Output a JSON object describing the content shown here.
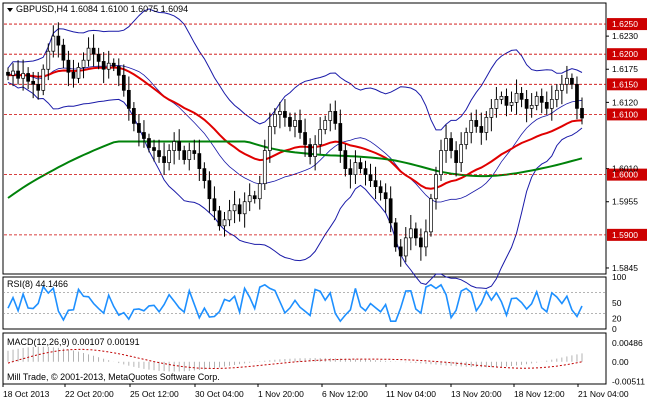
{
  "chart_data": [
    {
      "type": "candlestick",
      "title": "GBPUSD,H4  1.6084 1.6100 1.6075 1.6094",
      "symbol": "GBPUSD",
      "timeframe": "H4",
      "ohlc_readout": [
        1.6084,
        1.61,
        1.6075,
        1.6094
      ],
      "ylim": [
        1.5835,
        1.6285
      ],
      "y_ticks": [
        "1.6230",
        "1.6175",
        "1.6120",
        "1.6010",
        "1.5955",
        "1.5845"
      ],
      "level_labels": [
        "1.6250",
        "1.6200",
        "1.6150",
        "1.6100",
        "1.6000",
        "1.5900"
      ],
      "levels": [
        1.625,
        1.62,
        1.615,
        1.61,
        1.6,
        1.59
      ],
      "current_price": 1.61,
      "x_ticks": [
        "18 Oct 2013",
        "22 Oct 20:00",
        "25 Oct 12:00",
        "30 Oct 04:00",
        "1 Nov 20:00",
        "6 Nov 12:00",
        "11 Nov 04:00",
        "13 Nov 20:00",
        "18 Nov 12:00",
        "21 Nov 04:00"
      ],
      "close": [
        1.6165,
        1.6172,
        1.616,
        1.6168,
        1.6155,
        1.615,
        1.614,
        1.6175,
        1.6205,
        1.623,
        1.6215,
        1.619,
        1.617,
        1.616,
        1.6178,
        1.619,
        1.621,
        1.62,
        1.6188,
        1.6175,
        1.6185,
        1.618,
        1.6165,
        1.614,
        1.611,
        1.6085,
        1.607,
        1.606,
        1.6045,
        1.604,
        1.603,
        1.602,
        1.604,
        1.6055,
        1.604,
        1.6025,
        1.604,
        1.6035,
        1.601,
        1.599,
        1.596,
        1.594,
        1.5915,
        1.5925,
        1.594,
        1.595,
        1.5935,
        1.5955,
        1.5965,
        1.596,
        1.5985,
        1.604,
        1.608,
        1.61,
        1.6105,
        1.6095,
        1.608,
        1.609,
        1.607,
        1.605,
        1.603,
        1.605,
        1.6075,
        1.609,
        1.6105,
        1.6085,
        1.604,
        1.601,
        1.6,
        1.602,
        1.601,
        1.6,
        1.599,
        1.598,
        1.597,
        1.596,
        1.592,
        1.588,
        1.5865,
        1.5895,
        1.591,
        1.5895,
        1.588,
        1.5905,
        1.596,
        1.6,
        1.604,
        1.606,
        1.604,
        1.602,
        1.605,
        1.607,
        1.609,
        1.608,
        1.607,
        1.6095,
        1.611,
        1.6125,
        1.613,
        1.6115,
        1.612,
        1.6135,
        1.6125,
        1.611,
        1.6115,
        1.613,
        1.612,
        1.611,
        1.6125,
        1.614,
        1.615,
        1.616,
        1.615,
        1.611,
        1.6094
      ],
      "indicators": {
        "bollinger_bands": true,
        "moving_averages": [
          {
            "color": "#e00000"
          },
          {
            "color": "#00820a"
          }
        ]
      }
    },
    {
      "type": "line",
      "title": "RSI(8) 44.1466",
      "name": "RSI",
      "period": 8,
      "value": 44.1466,
      "ylim": [
        0,
        100
      ],
      "y_ticks": [
        "100",
        "50",
        "20",
        "0"
      ],
      "levels": [
        30,
        70
      ],
      "color": "#1e90ff"
    },
    {
      "type": "line",
      "title": "MACD(12,26,9) 0.00107 0.00191",
      "name": "MACD",
      "params": [
        12,
        26,
        9
      ],
      "values": [
        0.00107,
        0.00191
      ],
      "ylim": [
        -0.0058,
        0.0075
      ],
      "y_ticks": [
        "0.00486",
        "0.00",
        "-0.00511"
      ],
      "color": "#c00000"
    }
  ],
  "footer": {
    "copyright": "Mill Trade, © 2001-2013, MetaQuotes Software Corp."
  }
}
